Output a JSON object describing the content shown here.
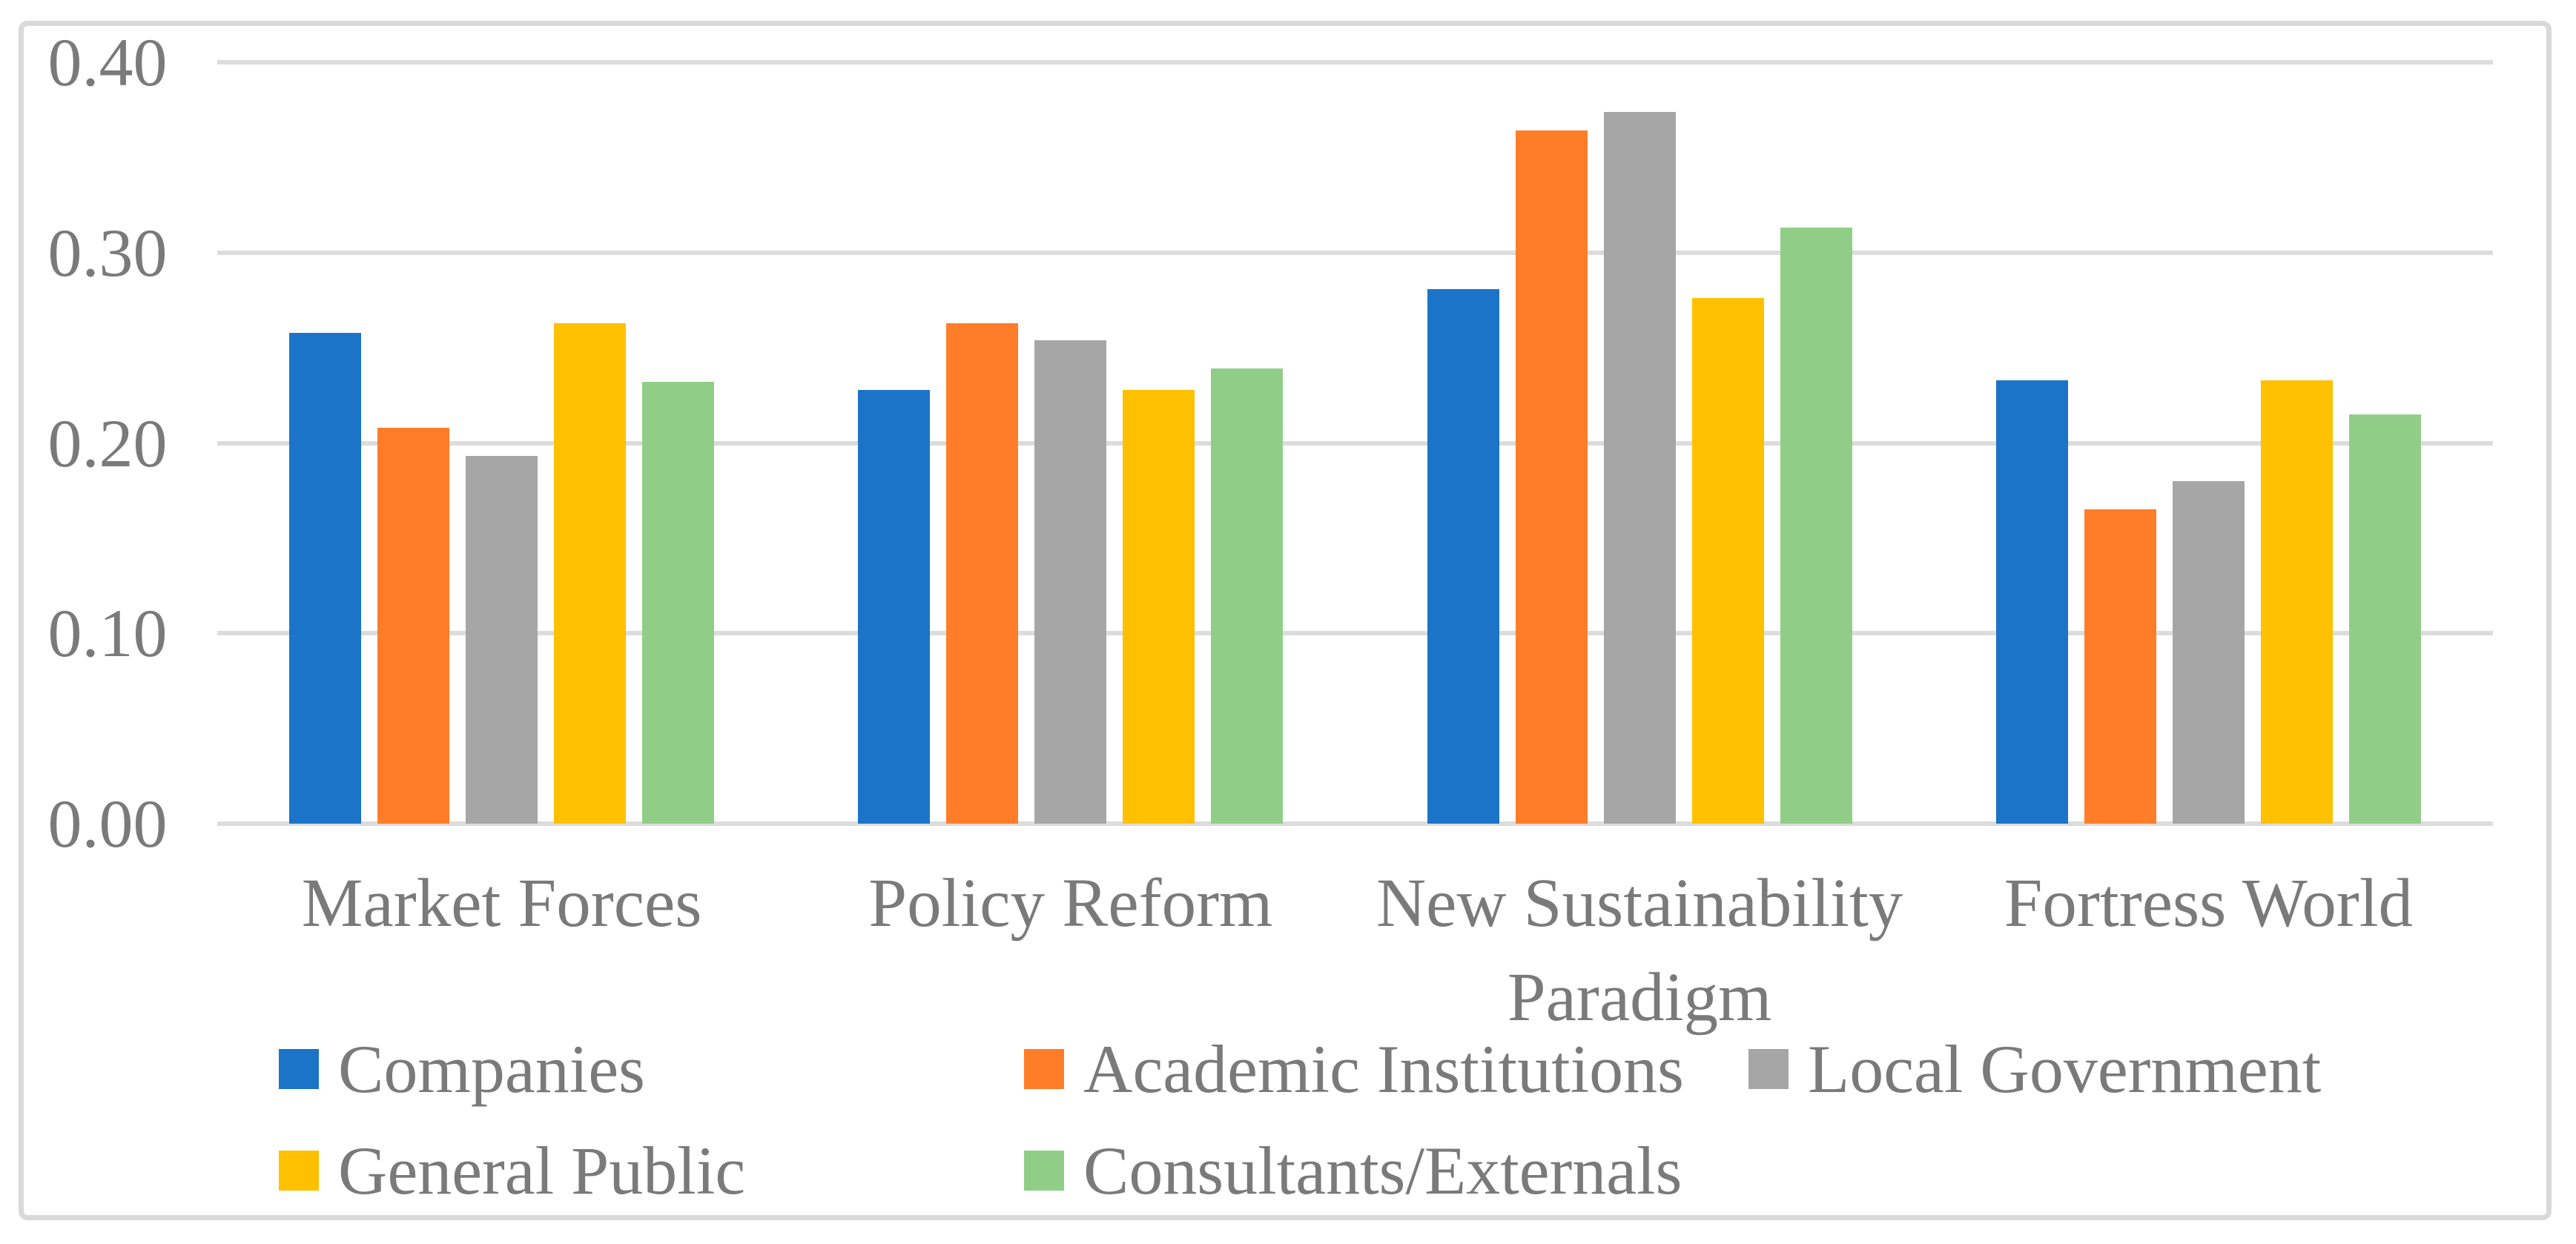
{
  "chart_data": {
    "type": "bar",
    "title": "",
    "xlabel": "",
    "ylabel": "",
    "categories": [
      "Market Forces",
      "Policy Reform",
      "New Sustainability Paradigm",
      "Fortress World"
    ],
    "series": [
      {
        "name": "Companies",
        "color": "#1b74c8",
        "values": [
          0.258,
          0.228,
          0.281,
          0.233
        ]
      },
      {
        "name": "Academic Institutions",
        "color": "#ff7d29",
        "values": [
          0.208,
          0.263,
          0.364,
          0.165
        ]
      },
      {
        "name": "Local Government",
        "color": "#a6a6a6",
        "values": [
          0.193,
          0.254,
          0.374,
          0.18
        ]
      },
      {
        "name": "General Public",
        "color": "#ffc000",
        "values": [
          0.263,
          0.228,
          0.276,
          0.233
        ]
      },
      {
        "name": "Consultants/Externals",
        "color": "#90ce88",
        "values": [
          0.232,
          0.239,
          0.313,
          0.215
        ]
      }
    ],
    "ylim": [
      0,
      0.4
    ],
    "yticks": [
      "0.00",
      "0.10",
      "0.20",
      "0.30",
      "0.40"
    ],
    "ytick_values": [
      0.0,
      0.1,
      0.2,
      0.3,
      0.4
    ],
    "grid": "horizontal",
    "legend_position": "bottom",
    "colors": {
      "text": "#7a7a7a",
      "gridline": "#dcdcdc",
      "frame_border": "#d9d9d9",
      "background": "#ffffff"
    }
  }
}
